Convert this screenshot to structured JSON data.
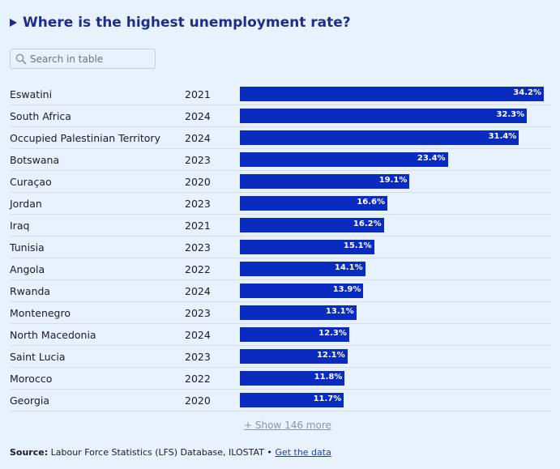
{
  "title": "Where is the highest unemployment rate?",
  "search": {
    "placeholder": "Search in table",
    "value": ""
  },
  "chart_data": {
    "type": "bar",
    "unit": "%",
    "xlim": [
      0,
      34.2
    ],
    "rows": [
      {
        "country": "Eswatini",
        "year": "2021",
        "value": 34.2,
        "label": "34.2%"
      },
      {
        "country": "South Africa",
        "year": "2024",
        "value": 32.3,
        "label": "32.3%"
      },
      {
        "country": "Occupied Palestinian Territory",
        "year": "2024",
        "value": 31.4,
        "label": "31.4%"
      },
      {
        "country": "Botswana",
        "year": "2023",
        "value": 23.4,
        "label": "23.4%"
      },
      {
        "country": "Curaçao",
        "year": "2020",
        "value": 19.1,
        "label": "19.1%"
      },
      {
        "country": "Jordan",
        "year": "2023",
        "value": 16.6,
        "label": "16.6%"
      },
      {
        "country": "Iraq",
        "year": "2021",
        "value": 16.2,
        "label": "16.2%"
      },
      {
        "country": "Tunisia",
        "year": "2023",
        "value": 15.1,
        "label": "15.1%"
      },
      {
        "country": "Angola",
        "year": "2022",
        "value": 14.1,
        "label": "14.1%"
      },
      {
        "country": "Rwanda",
        "year": "2024",
        "value": 13.9,
        "label": "13.9%"
      },
      {
        "country": "Montenegro",
        "year": "2023",
        "value": 13.1,
        "label": "13.1%"
      },
      {
        "country": "North Macedonia",
        "year": "2024",
        "value": 12.3,
        "label": "12.3%"
      },
      {
        "country": "Saint Lucia",
        "year": "2023",
        "value": 12.1,
        "label": "12.1%"
      },
      {
        "country": "Morocco",
        "year": "2022",
        "value": 11.8,
        "label": "11.8%"
      },
      {
        "country": "Georgia",
        "year": "2020",
        "value": 11.7,
        "label": "11.7%"
      }
    ]
  },
  "show_more": "+ Show 146 more",
  "source": {
    "label": "Source:",
    "text": "Labour Force Statistics (LFS) Database, ILOSTAT •",
    "link": "Get the data"
  },
  "colors": {
    "bar": "#0a2bbf",
    "title": "#1e2d8c",
    "background": "#e8f2fc"
  },
  "icons": {
    "search": "search-icon",
    "title_marker": "triangle-right-icon"
  }
}
